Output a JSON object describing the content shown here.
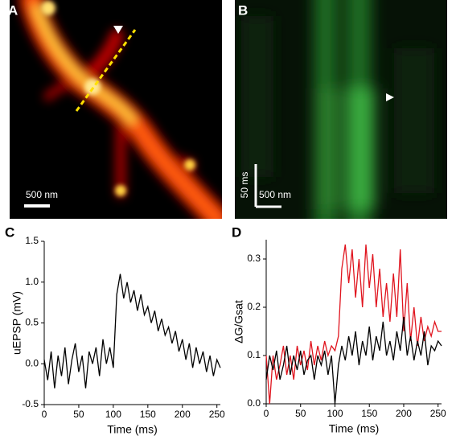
{
  "panels": {
    "A": {
      "label": "A",
      "scale_bar": "500 nm"
    },
    "B": {
      "label": "B",
      "scale_bar_time": "50 ms",
      "scale_bar_space": "500 nm"
    }
  },
  "chart_data": [
    {
      "type": "line",
      "panel_label": "C",
      "xlabel": "Time (ms)",
      "ylabel": "uEPSP (mV)",
      "x": [
        0,
        5,
        10,
        15,
        20,
        25,
        30,
        35,
        40,
        45,
        50,
        55,
        60,
        65,
        70,
        75,
        80,
        85,
        90,
        95,
        100,
        105,
        110,
        115,
        120,
        125,
        130,
        135,
        140,
        145,
        150,
        155,
        160,
        165,
        170,
        175,
        180,
        185,
        190,
        195,
        200,
        205,
        210,
        215,
        220,
        225,
        230,
        235,
        240,
        245,
        250,
        255
      ],
      "series": [
        {
          "color": "#000000",
          "values": [
            0.05,
            -0.2,
            0.15,
            -0.3,
            0.1,
            -0.15,
            0.2,
            -0.25,
            0.05,
            0.25,
            -0.1,
            0.1,
            -0.3,
            0.15,
            0.0,
            0.2,
            -0.15,
            0.3,
            0.0,
            0.2,
            -0.05,
            0.85,
            1.1,
            0.8,
            1.0,
            0.75,
            0.9,
            0.65,
            0.85,
            0.6,
            0.7,
            0.5,
            0.65,
            0.4,
            0.55,
            0.35,
            0.45,
            0.25,
            0.4,
            0.15,
            0.3,
            0.05,
            0.25,
            -0.05,
            0.2,
            0.0,
            0.15,
            -0.1,
            0.1,
            -0.15,
            0.05,
            -0.05
          ]
        }
      ],
      "xlim": [
        0,
        255
      ],
      "xticks": [
        0,
        50,
        100,
        150,
        200,
        250
      ],
      "ylim": [
        -0.5,
        1.5
      ],
      "yticks": [
        -0.5,
        {
          "value": 0,
          "label": "0.0"
        },
        0.5,
        {
          "value": 1,
          "label": "1.0"
        },
        1.5
      ]
    },
    {
      "type": "line",
      "panel_label": "D",
      "xlabel": "Time (ms)",
      "ylabel": "ΔG/Gsat",
      "x": [
        0,
        5,
        10,
        15,
        20,
        25,
        30,
        35,
        40,
        45,
        50,
        55,
        60,
        65,
        70,
        75,
        80,
        85,
        90,
        95,
        100,
        105,
        110,
        115,
        120,
        125,
        130,
        135,
        140,
        145,
        150,
        155,
        160,
        165,
        170,
        175,
        180,
        185,
        190,
        195,
        200,
        205,
        210,
        215,
        220,
        225,
        230,
        235,
        240,
        245,
        250,
        255
      ],
      "series": [
        {
          "color": "#e0141e",
          "values": [
            0.1,
            0.0,
            0.1,
            0.05,
            0.08,
            0.12,
            0.06,
            0.1,
            0.05,
            0.12,
            0.08,
            0.11,
            0.07,
            0.13,
            0.08,
            0.12,
            0.09,
            0.13,
            0.1,
            0.12,
            0.11,
            0.14,
            0.28,
            0.33,
            0.25,
            0.32,
            0.22,
            0.3,
            0.2,
            0.33,
            0.24,
            0.31,
            0.2,
            0.28,
            0.18,
            0.25,
            0.17,
            0.27,
            0.18,
            0.32,
            0.15,
            0.25,
            0.13,
            0.2,
            0.12,
            0.18,
            0.13,
            0.16,
            0.14,
            0.17,
            0.15,
            0.15
          ]
        },
        {
          "color": "#000000",
          "values": [
            0.05,
            0.1,
            0.07,
            0.11,
            0.05,
            0.08,
            0.12,
            0.06,
            0.1,
            0.07,
            0.11,
            0.06,
            0.09,
            0.1,
            0.05,
            0.1,
            0.08,
            0.11,
            0.06,
            0.1,
            0.0,
            0.08,
            0.12,
            0.09,
            0.14,
            0.1,
            0.15,
            0.08,
            0.13,
            0.1,
            0.16,
            0.09,
            0.14,
            0.11,
            0.17,
            0.1,
            0.13,
            0.09,
            0.15,
            0.11,
            0.18,
            0.1,
            0.14,
            0.09,
            0.13,
            0.1,
            0.15,
            0.08,
            0.12,
            0.11,
            0.13,
            0.12
          ]
        }
      ],
      "xlim": [
        0,
        255
      ],
      "xticks": [
        0,
        50,
        100,
        150,
        200,
        250
      ],
      "ylim": [
        0,
        0.34
      ],
      "yticks": [
        {
          "value": 0,
          "label": "0.0"
        },
        0.1,
        0.2,
        0.3
      ]
    }
  ]
}
